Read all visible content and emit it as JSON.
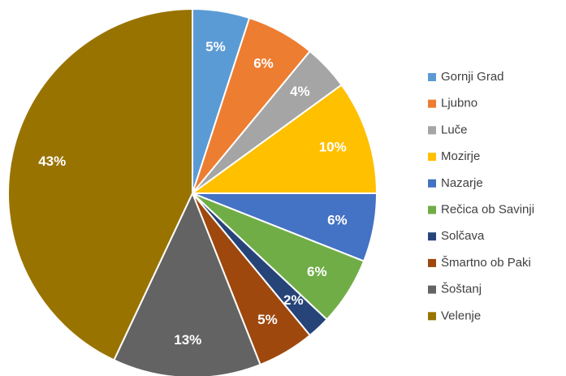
{
  "chart_data": {
    "type": "pie",
    "categories": [
      "Gornji Grad",
      "Ljubno",
      "Luče",
      "Mozirje",
      "Nazarje",
      "Rečica ob Savinji",
      "Solčava",
      "Šmartno ob Paki",
      "Šoštanj",
      "Velenje"
    ],
    "values": [
      5,
      6,
      4,
      10,
      6,
      6,
      2,
      5,
      13,
      43
    ],
    "value_labels": [
      "5%",
      "6%",
      "4%",
      "10%",
      "6%",
      "6%",
      "2%",
      "5%",
      "13%",
      "43%"
    ],
    "colors": [
      "#5b9bd5",
      "#ed7d31",
      "#a5a5a5",
      "#ffc000",
      "#4472c4",
      "#70ad47",
      "#264478",
      "#9e480e",
      "#636363",
      "#997300"
    ],
    "legend": "right"
  }
}
